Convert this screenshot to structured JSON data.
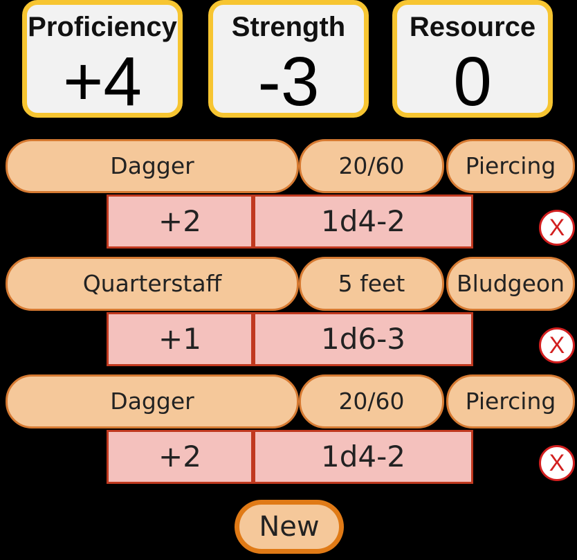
{
  "stats": {
    "proficiency": {
      "label": "Proficiency",
      "value": "+4"
    },
    "strength": {
      "label": "Strength",
      "value": "-3"
    },
    "resource": {
      "label": "Resource",
      "value": "0"
    }
  },
  "weapons": [
    {
      "name": "Dagger",
      "range": "20/60",
      "damage_type": "Piercing",
      "attack_bonus": "+2",
      "damage": "1d4-2",
      "delete_label": "X"
    },
    {
      "name": "Quarterstaff",
      "range": "5 feet",
      "damage_type": "Bludgeon",
      "attack_bonus": "+1",
      "damage": "1d6-3",
      "delete_label": "X"
    },
    {
      "name": "Dagger",
      "range": "20/60",
      "damage_type": "Piercing",
      "attack_bonus": "+2",
      "damage": "1d4-2",
      "delete_label": "X"
    }
  ],
  "new_button": {
    "label": "New"
  },
  "colors": {
    "background": "#000000",
    "stat_card_border": "#f7c531",
    "pill_fill": "#f5c89a",
    "pill_border": "#d67a32",
    "box_fill": "#f4c1bd",
    "box_border": "#c0391f",
    "delete_red": "#d21f1f"
  }
}
